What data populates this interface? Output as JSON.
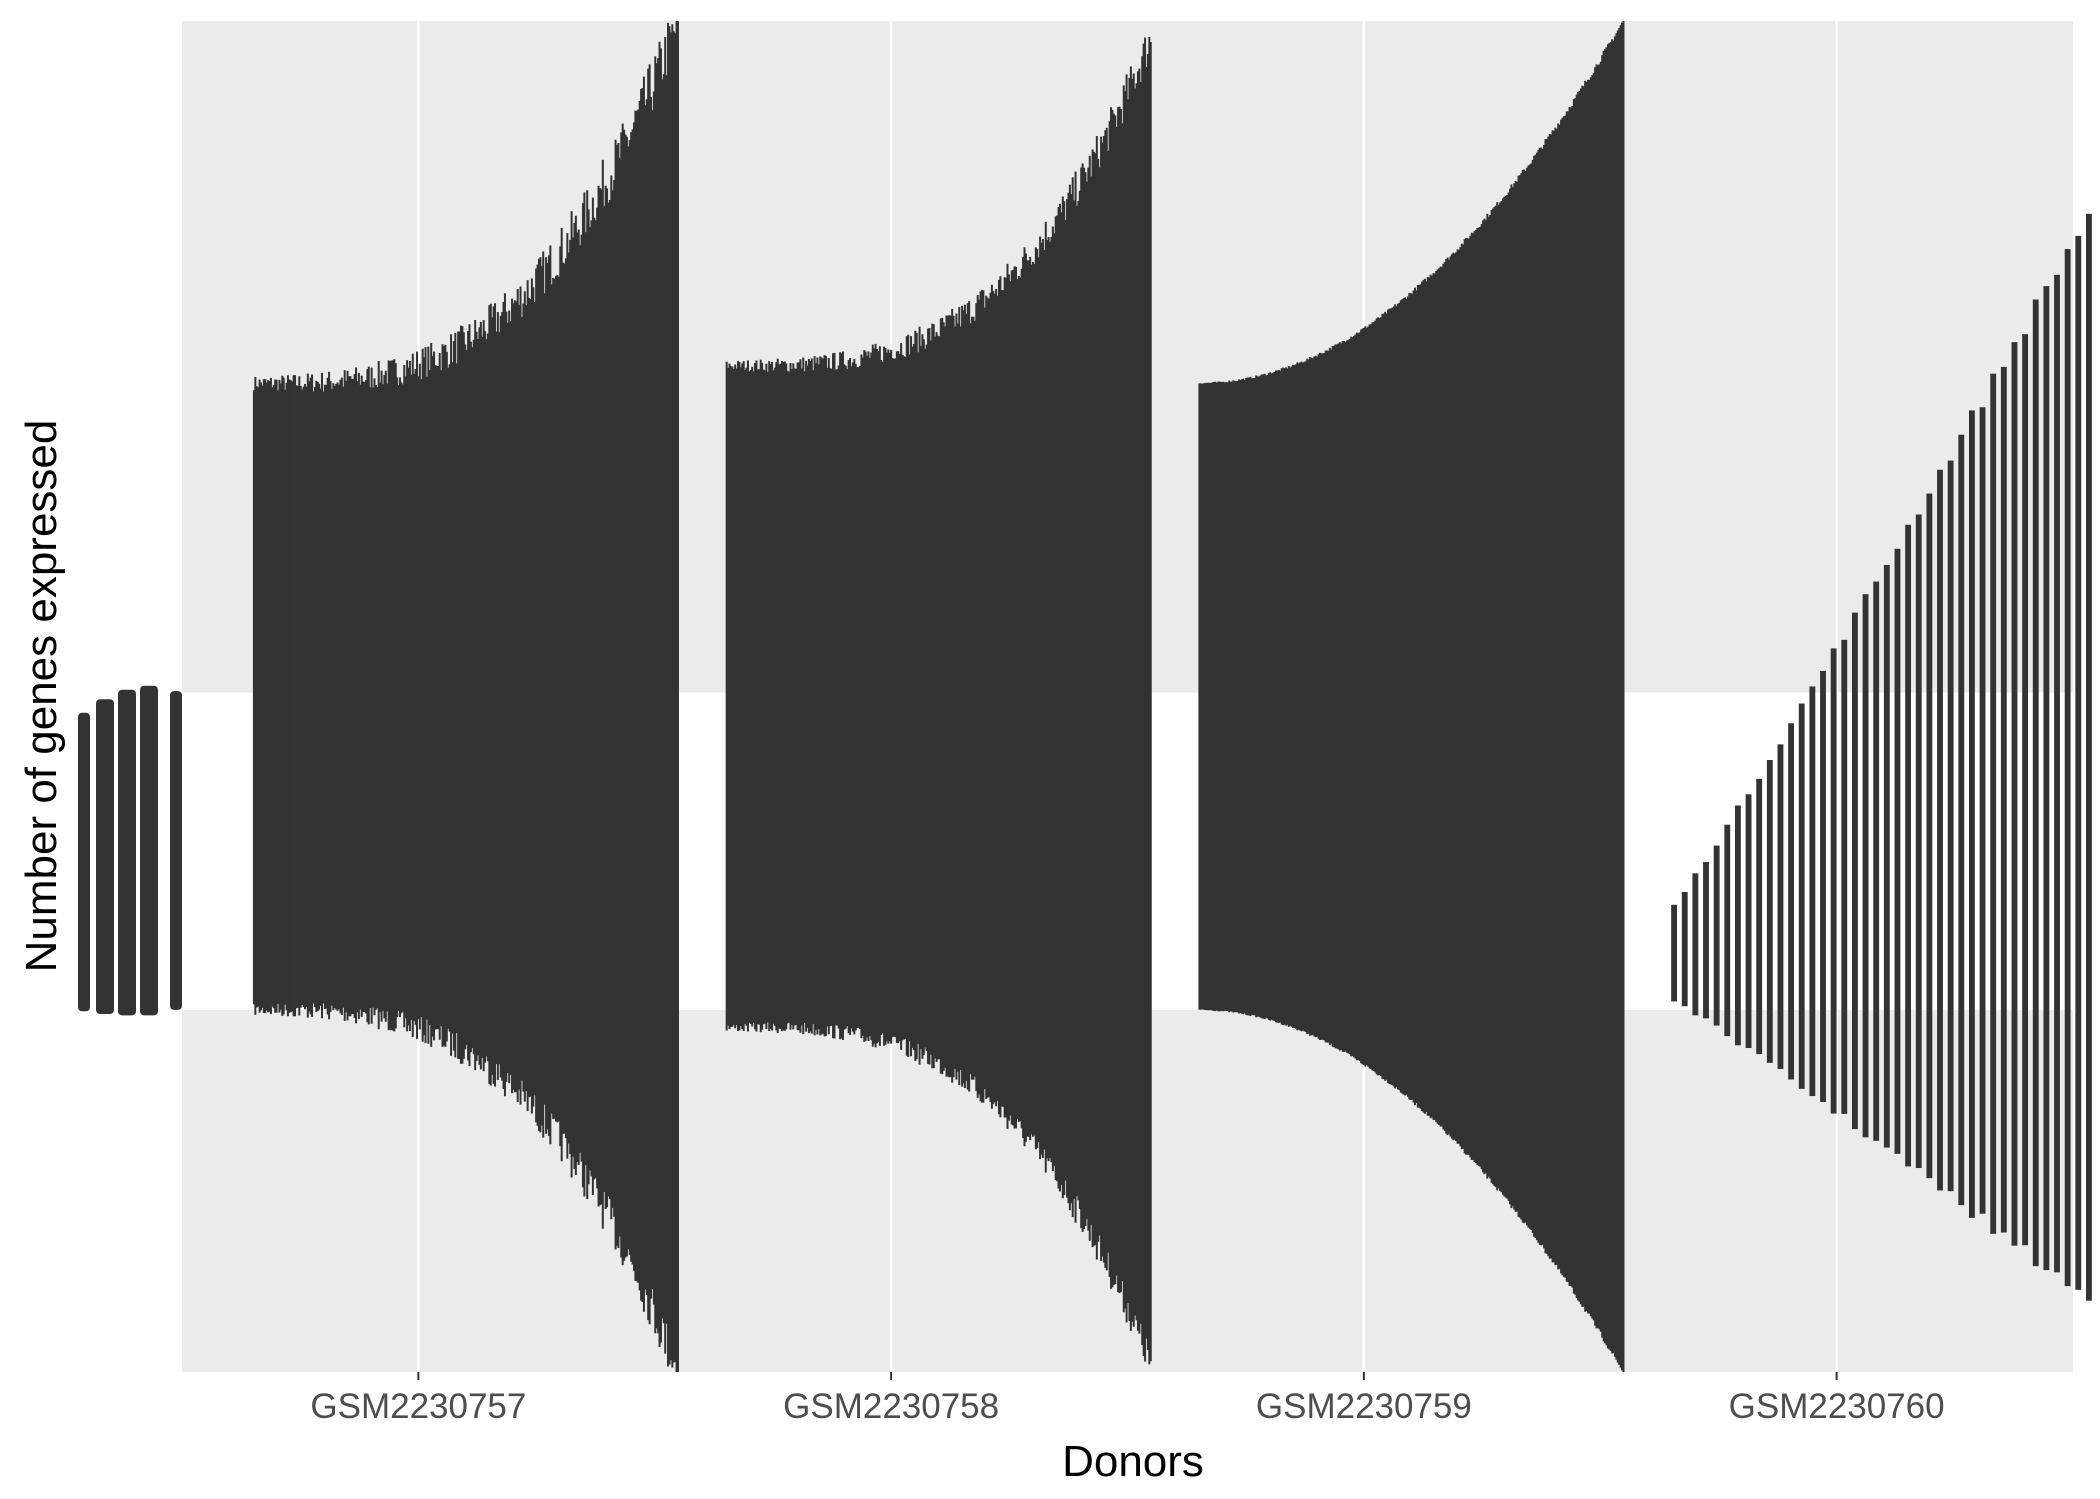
{
  "chart_data": {
    "type": "bar",
    "title": "",
    "xlabel": "Donors",
    "ylabel": "Number of genes expressed",
    "categories": [
      "GSM2230757",
      "GSM2230758",
      "GSM2230759",
      "GSM2230760"
    ],
    "grid": true,
    "y_tick_labels_shown": false,
    "legend": "none",
    "ylim": [
      0,
      1
    ],
    "panel_color": "#ebebeb",
    "grid_color": "#ffffff",
    "bar_color": "#333333",
    "groups": [
      {
        "name": "GSM2230757",
        "n": 300,
        "low": 0.268,
        "high": 0.732,
        "tip_low": 0.0,
        "tip_high": 0.999,
        "shape": 3.1,
        "jitter": 0.035,
        "gap": 0.0
      },
      {
        "name": "GSM2230758",
        "n": 300,
        "low": 0.255,
        "high": 0.745,
        "tip_low": 0.006,
        "tip_high": 0.987,
        "shape": 3.2,
        "jitter": 0.025,
        "gap": 0.0
      },
      {
        "name": "GSM2230759",
        "n": 300,
        "low": 0.268,
        "high": 0.732,
        "tip_low": 0.0,
        "tip_high": 1.0,
        "shape": 2.0,
        "jitter": 0.004,
        "gap": 0.0
      },
      {
        "name": "GSM2230760",
        "n": 40,
        "low": 0.275,
        "high": 0.345,
        "tip_low": 0.053,
        "tip_high": 0.857,
        "shape": 1.05,
        "jitter": 0.012,
        "gap": 0.45
      }
    ]
  }
}
